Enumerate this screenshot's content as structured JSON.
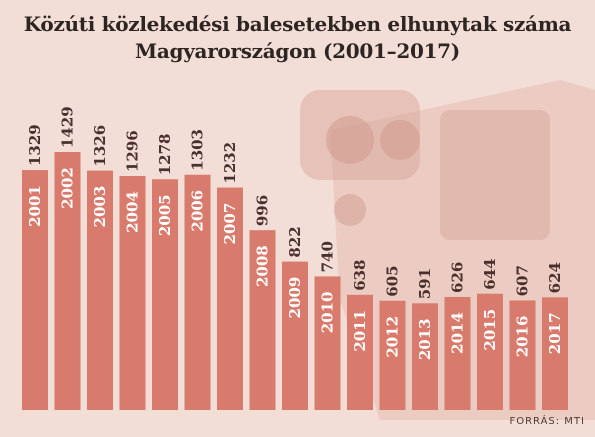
{
  "title_line1": "Közúti közlekedési balesetekben elhunytak száma",
  "title_line2": "Magyarországon (2001–2017)",
  "source": "FORRÁS: MTI",
  "colors": {
    "bar": "#d97b6c",
    "background": "#f3ddd7",
    "label_light": "#ffffff",
    "label_dark": "#4a302c"
  },
  "chart_data": {
    "type": "bar",
    "categories": [
      "2001",
      "2002",
      "2003",
      "2004",
      "2005",
      "2006",
      "2007",
      "2008",
      "2009",
      "2010",
      "2011",
      "2012",
      "2013",
      "2014",
      "2015",
      "2016",
      "2017"
    ],
    "values": [
      1329,
      1429,
      1326,
      1296,
      1278,
      1303,
      1232,
      996,
      822,
      740,
      638,
      605,
      591,
      626,
      644,
      607,
      624
    ],
    "title": "Közúti közlekedési balesetekben elhunytak száma Magyarországon (2001–2017)",
    "data_labels": true
  }
}
